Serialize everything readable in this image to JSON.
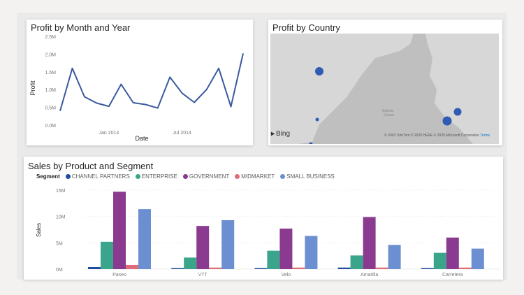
{
  "colors": {
    "line": "#3a5a9e",
    "channel_partners": "#1f4e9e",
    "enterprise": "#3aa58a",
    "government": "#8a3a8f",
    "midmarket": "#e06c7a",
    "small_business": "#6b8fd0",
    "map_land": "#d7d7d7",
    "map_water": "#bfbfbf",
    "bubble": "#2f5bb5"
  },
  "line_card": {
    "title": "Profit by Month and Year",
    "xlabel": "Date",
    "ylabel": "Profit",
    "chart_data": {
      "type": "line",
      "title": "Profit by Month and Year",
      "xlabel": "Date",
      "ylabel": "Profit",
      "ylim": [
        0,
        2500000
      ],
      "y_ticks": [
        "0.0M",
        "0.5M",
        "1.0M",
        "1.5M",
        "2.0M",
        "2.5M"
      ],
      "x_ticks": [
        "Jan 2014",
        "Jul 2014"
      ],
      "x": [
        "Sep 2013",
        "Oct 2013",
        "Nov 2013",
        "Dec 2013",
        "Jan 2014",
        "Feb 2014",
        "Mar 2014",
        "Apr 2014",
        "May 2014",
        "Jun 2014",
        "Jul 2014",
        "Aug 2014",
        "Sep 2014",
        "Oct 2014",
        "Nov 2014",
        "Dec 2014"
      ],
      "series": [
        {
          "values": [
            400000,
            1600000,
            800000,
            620000,
            530000,
            1150000,
            630000,
            580000,
            480000,
            1350000,
            900000,
            640000,
            1000000,
            1600000,
            520000,
            2020000
          ]
        }
      ]
    }
  },
  "map_card": {
    "title": "Profit by Country",
    "ocean_label_1": "Atlantic",
    "ocean_label_2": "Ocean",
    "bing_logo": "Bing",
    "credit_text": "© 2020 TomTom © 2020 HERE © 2020 Microsoft Corporation",
    "terms_link": "Terms",
    "bubbles": [
      {
        "country": "Canada",
        "size": "large"
      },
      {
        "country": "United States of America",
        "size": "small"
      },
      {
        "country": "Mexico",
        "size": "small"
      },
      {
        "country": "France",
        "size": "large"
      },
      {
        "country": "Germany",
        "size": "large"
      }
    ]
  },
  "bar_card": {
    "title": "Sales by Product and Segment",
    "legend_title": "Segment",
    "segments": [
      "CHANNEL PARTNERS",
      "ENTERPRISE",
      "GOVERNMENT",
      "MIDMARKET",
      "SMALL BUSINESS"
    ],
    "ylabel": "Sales",
    "chart_data": {
      "type": "bar",
      "title": "Sales by Product and Segment",
      "ylabel": "Sales",
      "legend_title": "Segment",
      "legend_position": "top-left",
      "ylim": [
        0,
        15000000
      ],
      "y_ticks": [
        "0M",
        "5M",
        "10M",
        "15M"
      ],
      "categories": [
        "Paseo",
        "VTT",
        "Velo",
        "Amarilla",
        "Carretera"
      ],
      "series": [
        {
          "name": "CHANNEL PARTNERS",
          "values": [
            400000,
            200000,
            200000,
            300000,
            200000
          ]
        },
        {
          "name": "ENTERPRISE",
          "values": [
            5200000,
            2200000,
            3500000,
            2600000,
            3100000
          ]
        },
        {
          "name": "GOVERNMENT",
          "values": [
            14700000,
            8200000,
            7700000,
            9900000,
            6000000
          ]
        },
        {
          "name": "MIDMARKET",
          "values": [
            800000,
            300000,
            300000,
            300000,
            300000
          ]
        },
        {
          "name": "SMALL BUSINESS",
          "values": [
            11400000,
            9300000,
            6300000,
            4600000,
            3900000
          ]
        }
      ]
    }
  }
}
